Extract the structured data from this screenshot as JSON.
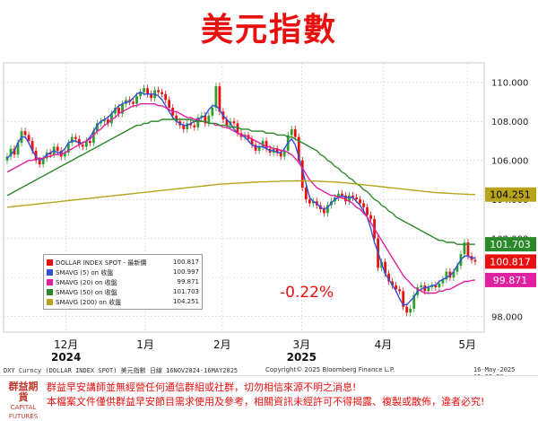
{
  "page": {
    "title": "美元指數",
    "footer_left": "DXY Curncy (DOLLAR INDEX SPOT)  美元指數    日線 16NOV2024-16MAY2025",
    "footer_center": "Copyright© 2025 Bloomberg Finance L.P.",
    "footer_right": "16-May-2025 05:35:29",
    "change_label": "-0.22%",
    "logo_mark": "群益期貨",
    "logo_text": "CAPITAL FUTURES",
    "disclaimer": [
      "群益早安講師並無經營任何通信群組或社群，切勿相信來源不明之消息!",
      "本檔案文件僅供群益早安節目需求使用及參考，相關資訊未經許可不得揭露、複製或散佈，違者必究!"
    ],
    "colors": {
      "title": "#e8100f",
      "up": "#2e9e2e",
      "down": "#e8100f",
      "sma5": "#3050d8",
      "sma20": "#e020a0",
      "sma50": "#2a8a2a",
      "sma200": "#b8a41c"
    }
  },
  "legend": [
    {
      "name": "DOLLAR INDEX SPOT - 最新價",
      "value": "100.817",
      "color": "#e8100f"
    },
    {
      "name": "SMAVG (5)  on 收盤",
      "value": "100.997",
      "color": "#3050d8"
    },
    {
      "name": "SMAVG (20)  on 收盤",
      "value": "99.871",
      "color": "#e020a0"
    },
    {
      "name": "SMAVG (50)  on 收盤",
      "value": "101.703",
      "color": "#2a8a2a"
    },
    {
      "name": "SMAVG (200)  on 收盤",
      "value": "104.251",
      "color": "#b8a41c"
    }
  ],
  "chart_data": {
    "type": "candlestick",
    "title": "美元指數",
    "xlabel": "",
    "ylabel": "",
    "ylim": [
      97.2,
      111.0
    ],
    "y_ticks": [
      "110.000",
      "108.000",
      "106.000",
      "104.000",
      "102.000",
      "100.000",
      "98.000"
    ],
    "x_ticks": [
      "12月",
      "1月",
      "2月",
      "3月",
      "4月",
      "5月"
    ],
    "year_labels": [
      "2024",
      "2025"
    ],
    "grid": true,
    "closes": [
      106.2,
      106.6,
      106.3,
      106.9,
      107.5,
      107.3,
      107.0,
      106.5,
      106.0,
      105.8,
      106.1,
      106.4,
      106.3,
      106.7,
      106.5,
      106.2,
      106.4,
      106.9,
      107.2,
      107.1,
      106.8,
      106.7,
      107.0,
      106.9,
      107.5,
      107.9,
      108.0,
      108.1,
      107.9,
      108.4,
      108.7,
      108.4,
      108.9,
      109.1,
      109.0,
      108.9,
      109.3,
      109.5,
      109.7,
      109.4,
      109.2,
      109.6,
      109.5,
      109.4,
      109.1,
      108.7,
      108.3,
      108.0,
      107.8,
      107.6,
      107.9,
      107.8,
      107.7,
      108.2,
      108.3,
      107.9,
      108.3,
      108.7,
      109.8,
      108.5,
      108.1,
      107.8,
      108.0,
      107.9,
      107.4,
      107.2,
      107.3,
      107.1,
      106.8,
      106.5,
      106.7,
      107.0,
      106.6,
      106.4,
      106.6,
      106.4,
      106.2,
      106.5,
      107.3,
      107.6,
      107.2,
      106.0,
      104.6,
      104.0,
      103.8,
      103.9,
      103.7,
      103.5,
      103.3,
      103.7,
      103.9,
      104.1,
      104.3,
      104.2,
      103.9,
      104.2,
      104.1,
      104.0,
      103.8,
      103.6,
      103.2,
      103.0,
      102.0,
      100.5,
      100.8,
      100.2,
      99.8,
      99.6,
      99.4,
      99.3,
      98.5,
      98.2,
      98.4,
      99.1,
      99.5,
      99.6,
      99.3,
      99.5,
      99.6,
      99.5,
      99.7,
      99.9,
      100.3,
      100.0,
      100.3,
      100.6,
      101.2,
      101.8,
      101.1,
      100.9,
      100.817
    ],
    "series": [
      {
        "name": "SMAVG (5)",
        "last": 100.997,
        "values": [
          106.1,
          106.3,
          106.5,
          106.9,
          107.2,
          107.2,
          106.9,
          106.5,
          106.2,
          106.0,
          106.1,
          106.3,
          106.4,
          106.5,
          106.4,
          106.4,
          106.6,
          106.9,
          107.0,
          107.0,
          106.9,
          106.9,
          107.0,
          107.2,
          107.5,
          107.8,
          108.0,
          108.1,
          108.2,
          108.4,
          108.6,
          108.8,
          108.9,
          109.0,
          109.0,
          109.2,
          109.4,
          109.5,
          109.4,
          109.4,
          109.4,
          109.4,
          109.3,
          109.1,
          108.8,
          108.5,
          108.2,
          108.0,
          107.9,
          107.8,
          107.8,
          107.9,
          108.0,
          108.1,
          108.2,
          108.3,
          108.6,
          108.8,
          108.8,
          108.6,
          108.3,
          108.1,
          107.9,
          107.6,
          107.4,
          107.3,
          107.2,
          107.0,
          106.8,
          106.7,
          106.7,
          106.7,
          106.6,
          106.5,
          106.5,
          106.4,
          106.4,
          106.6,
          106.9,
          107.1,
          106.8,
          106.2,
          105.5,
          104.8,
          104.1,
          103.9,
          103.8,
          103.6,
          103.5,
          103.6,
          103.8,
          104.0,
          104.1,
          104.2,
          104.1,
          104.1,
          104.1,
          103.9,
          103.7,
          103.4,
          103.1,
          102.5,
          101.8,
          101.3,
          100.7,
          100.2,
          99.9,
          99.6,
          99.3,
          98.9,
          98.6,
          98.6,
          98.8,
          99.0,
          99.3,
          99.4,
          99.5,
          99.5,
          99.6,
          99.6,
          99.8,
          99.9,
          100.0,
          100.1,
          100.3,
          100.6,
          100.9,
          101.1,
          101.1,
          101.0,
          100.997
        ]
      },
      {
        "name": "SMAVG (20)",
        "last": 99.871,
        "values": [
          105.4,
          105.5,
          105.6,
          105.7,
          105.8,
          105.9,
          106.0,
          106.0,
          106.1,
          106.1,
          106.1,
          106.2,
          106.2,
          106.3,
          106.3,
          106.3,
          106.4,
          106.5,
          106.6,
          106.7,
          106.8,
          106.9,
          107.0,
          107.1,
          107.3,
          107.5,
          107.6,
          107.8,
          107.9,
          108.1,
          108.2,
          108.4,
          108.5,
          108.6,
          108.7,
          108.8,
          108.8,
          108.9,
          108.9,
          108.9,
          108.9,
          108.9,
          108.8,
          108.8,
          108.7,
          108.6,
          108.5,
          108.5,
          108.4,
          108.3,
          108.2,
          108.2,
          108.1,
          108.1,
          108.0,
          108.0,
          107.9,
          107.9,
          107.8,
          107.8,
          107.7,
          107.7,
          107.6,
          107.5,
          107.4,
          107.3,
          107.3,
          107.2,
          107.1,
          107.0,
          106.9,
          106.8,
          106.7,
          106.7,
          106.6,
          106.6,
          106.5,
          106.5,
          106.4,
          106.3,
          106.1,
          105.9,
          105.6,
          105.3,
          105.0,
          104.8,
          104.6,
          104.5,
          104.4,
          104.3,
          104.2,
          104.2,
          104.1,
          104.1,
          104.0,
          103.9,
          103.8,
          103.6,
          103.5,
          103.3,
          103.1,
          102.8,
          102.5,
          102.2,
          101.9,
          101.6,
          101.3,
          101.0,
          100.7,
          100.4,
          100.1,
          99.9,
          99.7,
          99.5,
          99.4,
          99.3,
          99.2,
          99.2,
          99.2,
          99.2,
          99.3,
          99.3,
          99.4,
          99.4,
          99.5,
          99.6,
          99.7,
          99.8,
          99.8,
          99.85,
          99.871
        ]
      },
      {
        "name": "SMAVG (50)",
        "last": 101.703,
        "values": [
          104.2,
          104.3,
          104.4,
          104.5,
          104.6,
          104.7,
          104.8,
          104.9,
          105.0,
          105.1,
          105.2,
          105.3,
          105.4,
          105.5,
          105.6,
          105.7,
          105.8,
          105.9,
          106.0,
          106.1,
          106.2,
          106.3,
          106.4,
          106.5,
          106.6,
          106.7,
          106.8,
          106.9,
          107.0,
          107.1,
          107.2,
          107.3,
          107.4,
          107.5,
          107.6,
          107.7,
          107.8,
          107.8,
          107.9,
          107.9,
          108.0,
          108.0,
          108.0,
          108.1,
          108.1,
          108.1,
          108.1,
          108.1,
          108.1,
          108.1,
          108.1,
          108.1,
          108.0,
          108.0,
          108.0,
          108.0,
          107.9,
          107.9,
          107.9,
          107.8,
          107.8,
          107.8,
          107.7,
          107.7,
          107.7,
          107.6,
          107.6,
          107.6,
          107.5,
          107.5,
          107.5,
          107.5,
          107.4,
          107.4,
          107.4,
          107.3,
          107.3,
          107.3,
          107.2,
          107.2,
          107.1,
          107.0,
          106.9,
          106.8,
          106.7,
          106.6,
          106.5,
          106.3,
          106.2,
          106.0,
          105.9,
          105.7,
          105.6,
          105.4,
          105.3,
          105.1,
          105.0,
          104.8,
          104.7,
          104.5,
          104.4,
          104.2,
          104.0,
          103.9,
          103.7,
          103.6,
          103.4,
          103.3,
          103.1,
          103.0,
          102.9,
          102.8,
          102.7,
          102.6,
          102.5,
          102.4,
          102.3,
          102.2,
          102.1,
          102.0,
          101.9,
          101.9,
          101.8,
          101.8,
          101.8,
          101.7,
          101.7,
          101.7,
          101.7,
          101.7,
          101.703
        ]
      },
      {
        "name": "SMAVG (200)",
        "last": 104.251,
        "values": [
          103.6,
          103.62,
          103.64,
          103.66,
          103.68,
          103.7,
          103.72,
          103.74,
          103.76,
          103.78,
          103.8,
          103.82,
          103.84,
          103.86,
          103.88,
          103.9,
          103.92,
          103.94,
          103.96,
          103.98,
          104.0,
          104.02,
          104.04,
          104.06,
          104.08,
          104.1,
          104.12,
          104.14,
          104.16,
          104.18,
          104.2,
          104.22,
          104.24,
          104.26,
          104.28,
          104.3,
          104.32,
          104.34,
          104.36,
          104.38,
          104.4,
          104.42,
          104.44,
          104.46,
          104.48,
          104.5,
          104.52,
          104.54,
          104.56,
          104.58,
          104.6,
          104.62,
          104.64,
          104.66,
          104.68,
          104.7,
          104.72,
          104.74,
          104.76,
          104.78,
          104.8,
          104.8,
          104.82,
          104.82,
          104.84,
          104.84,
          104.86,
          104.86,
          104.88,
          104.88,
          104.9,
          104.9,
          104.9,
          104.92,
          104.92,
          104.92,
          104.94,
          104.94,
          104.94,
          104.94,
          104.95,
          104.95,
          104.95,
          104.95,
          104.95,
          104.94,
          104.94,
          104.93,
          104.92,
          104.91,
          104.9,
          104.89,
          104.88,
          104.86,
          104.85,
          104.83,
          104.81,
          104.79,
          104.77,
          104.75,
          104.73,
          104.71,
          104.69,
          104.67,
          104.65,
          104.63,
          104.61,
          104.59,
          104.57,
          104.55,
          104.53,
          104.51,
          104.49,
          104.47,
          104.45,
          104.43,
          104.41,
          104.39,
          104.37,
          104.35,
          104.34,
          104.33,
          104.32,
          104.31,
          104.3,
          104.29,
          104.28,
          104.27,
          104.26,
          104.255,
          104.251
        ]
      }
    ],
    "price_labels": [
      {
        "label": "104.251",
        "value": 104.251,
        "color": "#b8a41c",
        "text_color": "#000000"
      },
      {
        "label": "101.703",
        "value": 101.703,
        "color": "#2a8a2a",
        "text_color": "#ffffff"
      },
      {
        "label": "100.817",
        "value": 100.817,
        "color": "#e8100f",
        "text_color": "#ffffff"
      },
      {
        "label": "99.871",
        "value": 99.871,
        "color": "#e020a0",
        "text_color": "#ffffff"
      }
    ]
  }
}
